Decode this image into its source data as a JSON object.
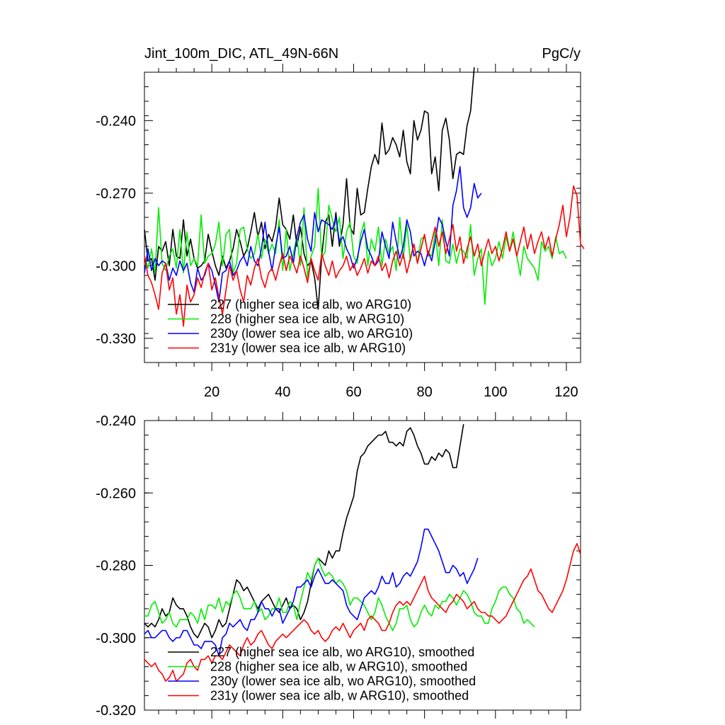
{
  "title_left": "Jint_100m_DIC, ATL_49N-66N",
  "title_right": "PgC/y",
  "chart_data": [
    {
      "type": "line",
      "title": "Jint_100m_DIC, ATL_49N-66N",
      "units": "PgC/y",
      "xlim": [
        1,
        124
      ],
      "ylim": [
        -0.34,
        -0.22
      ],
      "yticks": [
        -0.24,
        -0.27,
        -0.3,
        -0.33
      ],
      "ytick_labels": [
        "-0.240",
        "-0.270",
        "-0.300",
        "-0.330"
      ],
      "xticks": [
        20,
        40,
        60,
        80,
        100,
        120
      ],
      "xtick_labels": [
        "20",
        "40",
        "60",
        "80",
        "100",
        "120"
      ],
      "legend_position": "bottom-left",
      "series": [
        {
          "name": "227 (higher sea ice alb, wo ARG10)",
          "color": "#000000",
          "x_start": 1,
          "values": [
            -0.285,
            -0.298,
            -0.297,
            -0.306,
            -0.292,
            -0.294,
            -0.29,
            -0.3,
            -0.285,
            -0.296,
            -0.297,
            -0.281,
            -0.296,
            -0.289,
            -0.297,
            -0.301,
            -0.3,
            -0.298,
            -0.287,
            -0.294,
            -0.3,
            -0.304,
            -0.296,
            -0.301,
            -0.298,
            -0.293,
            -0.285,
            -0.29,
            -0.296,
            -0.293,
            -0.286,
            -0.278,
            -0.288,
            -0.282,
            -0.293,
            -0.287,
            -0.29,
            -0.284,
            -0.272,
            -0.283,
            -0.285,
            -0.289,
            -0.279,
            -0.292,
            -0.284,
            -0.295,
            -0.3,
            -0.298,
            -0.305,
            -0.318,
            -0.296,
            -0.282,
            -0.279,
            -0.292,
            -0.278,
            -0.292,
            -0.283,
            -0.264,
            -0.284,
            -0.287,
            -0.268,
            -0.279,
            -0.278,
            -0.268,
            -0.259,
            -0.254,
            -0.258,
            -0.241,
            -0.254,
            -0.252,
            -0.247,
            -0.25,
            -0.255,
            -0.244,
            -0.257,
            -0.262,
            -0.24,
            -0.248,
            -0.244,
            -0.236,
            -0.237,
            -0.262,
            -0.255,
            -0.269,
            -0.244,
            -0.239,
            -0.248,
            -0.264,
            -0.254,
            -0.253,
            -0.254,
            -0.242,
            -0.236,
            -0.218
          ]
        },
        {
          "name": "228 (higher sea ice alb, w ARG10)",
          "color": "#00ee00",
          "x_start": 1,
          "values": [
            -0.296,
            -0.301,
            -0.293,
            -0.303,
            -0.276,
            -0.299,
            -0.302,
            -0.296,
            -0.293,
            -0.301,
            -0.285,
            -0.303,
            -0.286,
            -0.3,
            -0.297,
            -0.3,
            -0.279,
            -0.299,
            -0.296,
            -0.295,
            -0.291,
            -0.282,
            -0.3,
            -0.287,
            -0.285,
            -0.303,
            -0.299,
            -0.285,
            -0.284,
            -0.293,
            -0.297,
            -0.295,
            -0.287,
            -0.297,
            -0.289,
            -0.295,
            -0.291,
            -0.295,
            -0.281,
            -0.302,
            -0.285,
            -0.302,
            -0.295,
            -0.288,
            -0.3,
            -0.276,
            -0.305,
            -0.296,
            -0.292,
            -0.268,
            -0.297,
            -0.294,
            -0.275,
            -0.281,
            -0.286,
            -0.28,
            -0.297,
            -0.286,
            -0.282,
            -0.296,
            -0.299,
            -0.287,
            -0.282,
            -0.3,
            -0.289,
            -0.294,
            -0.284,
            -0.3,
            -0.289,
            -0.295,
            -0.292,
            -0.302,
            -0.28,
            -0.297,
            -0.283,
            -0.298,
            -0.291,
            -0.299,
            -0.289,
            -0.288,
            -0.295,
            -0.296,
            -0.286,
            -0.3,
            -0.281,
            -0.298,
            -0.299,
            -0.291,
            -0.299,
            -0.293,
            -0.294,
            -0.297,
            -0.283,
            -0.304,
            -0.297,
            -0.293,
            -0.316,
            -0.294,
            -0.3,
            -0.297,
            -0.29,
            -0.297,
            -0.288,
            -0.294,
            -0.286,
            -0.296,
            -0.304,
            -0.292,
            -0.297,
            -0.299,
            -0.301,
            -0.306,
            -0.29,
            -0.294,
            -0.292,
            -0.297,
            -0.288,
            -0.295,
            -0.294,
            -0.297
          ]
        },
        {
          "name": "230y (lower sea ice alb, wo ARG10)",
          "color": "#0000ff",
          "x_start": 1,
          "values": [
            -0.303,
            -0.293,
            -0.302,
            -0.297,
            -0.3,
            -0.298,
            -0.299,
            -0.306,
            -0.301,
            -0.304,
            -0.298,
            -0.302,
            -0.299,
            -0.307,
            -0.311,
            -0.301,
            -0.306,
            -0.304,
            -0.299,
            -0.302,
            -0.308,
            -0.315,
            -0.303,
            -0.302,
            -0.298,
            -0.304,
            -0.302,
            -0.298,
            -0.296,
            -0.3,
            -0.292,
            -0.298,
            -0.3,
            -0.293,
            -0.282,
            -0.294,
            -0.302,
            -0.292,
            -0.284,
            -0.297,
            -0.296,
            -0.292,
            -0.299,
            -0.288,
            -0.282,
            -0.279,
            -0.289,
            -0.294,
            -0.278,
            -0.286,
            -0.281,
            -0.282,
            -0.283,
            -0.285,
            -0.28,
            -0.29,
            -0.288,
            -0.293,
            -0.296,
            -0.301,
            -0.297,
            -0.29,
            -0.285,
            -0.293,
            -0.296,
            -0.3,
            -0.298,
            -0.286,
            -0.292,
            -0.297,
            -0.282,
            -0.29,
            -0.297,
            -0.292,
            -0.281,
            -0.286,
            -0.296,
            -0.294,
            -0.295,
            -0.3,
            -0.294,
            -0.298,
            -0.29,
            -0.28,
            -0.283,
            -0.29,
            -0.296,
            -0.275,
            -0.269,
            -0.259,
            -0.276,
            -0.28,
            -0.276,
            -0.266,
            -0.272,
            -0.27
          ]
        },
        {
          "name": "231y (lower sea ice alb, w ARG10)",
          "color": "#ff0000",
          "x_start": 1,
          "values": [
            -0.296,
            -0.304,
            -0.307,
            -0.312,
            -0.318,
            -0.303,
            -0.299,
            -0.31,
            -0.305,
            -0.32,
            -0.312,
            -0.325,
            -0.308,
            -0.315,
            -0.312,
            -0.305,
            -0.309,
            -0.303,
            -0.299,
            -0.31,
            -0.305,
            -0.313,
            -0.32,
            -0.31,
            -0.3,
            -0.306,
            -0.302,
            -0.31,
            -0.315,
            -0.304,
            -0.308,
            -0.301,
            -0.297,
            -0.305,
            -0.309,
            -0.303,
            -0.301,
            -0.306,
            -0.3,
            -0.295,
            -0.302,
            -0.296,
            -0.299,
            -0.303,
            -0.296,
            -0.301,
            -0.307,
            -0.297,
            -0.302,
            -0.306,
            -0.295,
            -0.3,
            -0.304,
            -0.298,
            -0.305,
            -0.302,
            -0.3,
            -0.296,
            -0.302,
            -0.299,
            -0.304,
            -0.301,
            -0.297,
            -0.303,
            -0.298,
            -0.3,
            -0.296,
            -0.302,
            -0.299,
            -0.305,
            -0.298,
            -0.294,
            -0.3,
            -0.295,
            -0.303,
            -0.297,
            -0.291,
            -0.299,
            -0.293,
            -0.287,
            -0.296,
            -0.29,
            -0.284,
            -0.292,
            -0.286,
            -0.295,
            -0.289,
            -0.283,
            -0.294,
            -0.288,
            -0.299,
            -0.293,
            -0.288,
            -0.296,
            -0.291,
            -0.3,
            -0.294,
            -0.289,
            -0.295,
            -0.292,
            -0.298,
            -0.293,
            -0.286,
            -0.294,
            -0.289,
            -0.296,
            -0.29,
            -0.284,
            -0.293,
            -0.287,
            -0.295,
            -0.29,
            -0.286,
            -0.293,
            -0.288,
            -0.296,
            -0.289,
            -0.283,
            -0.275,
            -0.288,
            -0.28,
            -0.267,
            -0.271,
            -0.291,
            -0.293
          ]
        }
      ]
    },
    {
      "type": "line",
      "title": "",
      "xlim": [
        1,
        124
      ],
      "ylim": [
        -0.32,
        -0.24
      ],
      "yticks": [
        -0.24,
        -0.26,
        -0.28,
        -0.3,
        -0.32
      ],
      "ytick_labels": [
        "-0.240",
        "-0.260",
        "-0.280",
        "-0.300",
        "-0.320"
      ],
      "xticks": [
        20,
        40,
        60,
        80,
        100,
        120
      ],
      "legend_position": "bottom-left",
      "series": [
        {
          "name": "227 (higher sea ice alb, wo ARG10), smoothed",
          "color": "#000000",
          "x_start": 1,
          "values": [
            -0.296,
            -0.297,
            -0.296,
            -0.297,
            -0.295,
            -0.292,
            -0.294,
            -0.293,
            -0.289,
            -0.291,
            -0.292,
            -0.292,
            -0.294,
            -0.297,
            -0.299,
            -0.3,
            -0.298,
            -0.296,
            -0.297,
            -0.3,
            -0.298,
            -0.295,
            -0.297,
            -0.296,
            -0.292,
            -0.288,
            -0.284,
            -0.285,
            -0.287,
            -0.286,
            -0.288,
            -0.29,
            -0.292,
            -0.29,
            -0.289,
            -0.288,
            -0.29,
            -0.292,
            -0.293,
            -0.291,
            -0.289,
            -0.292,
            -0.291,
            -0.292,
            -0.295,
            -0.293,
            -0.29,
            -0.285,
            -0.28,
            -0.278,
            -0.279,
            -0.28,
            -0.276,
            -0.278,
            -0.276,
            -0.276,
            -0.271,
            -0.267,
            -0.264,
            -0.261,
            -0.254,
            -0.25,
            -0.249,
            -0.247,
            -0.246,
            -0.245,
            -0.244,
            -0.244,
            -0.243,
            -0.246,
            -0.246,
            -0.247,
            -0.246,
            -0.247,
            -0.243,
            -0.242,
            -0.244,
            -0.247,
            -0.249,
            -0.252,
            -0.252,
            -0.25,
            -0.251,
            -0.249,
            -0.25,
            -0.248,
            -0.249,
            -0.253,
            -0.253,
            -0.247,
            -0.241
          ]
        },
        {
          "name": "228 (higher sea ice alb, w ARG10), smoothed",
          "color": "#00ee00",
          "x_start": 1,
          "values": [
            -0.294,
            -0.294,
            -0.291,
            -0.29,
            -0.293,
            -0.296,
            -0.295,
            -0.293,
            -0.296,
            -0.297,
            -0.295,
            -0.295,
            -0.295,
            -0.293,
            -0.294,
            -0.296,
            -0.292,
            -0.295,
            -0.291,
            -0.291,
            -0.292,
            -0.289,
            -0.293,
            -0.29,
            -0.291,
            -0.288,
            -0.287,
            -0.289,
            -0.292,
            -0.292,
            -0.292,
            -0.29,
            -0.293,
            -0.292,
            -0.295,
            -0.294,
            -0.292,
            -0.292,
            -0.289,
            -0.293,
            -0.293,
            -0.29,
            -0.291,
            -0.295,
            -0.29,
            -0.286,
            -0.282,
            -0.284,
            -0.28,
            -0.278,
            -0.281,
            -0.283,
            -0.282,
            -0.283,
            -0.285,
            -0.284,
            -0.285,
            -0.287,
            -0.291,
            -0.289,
            -0.289,
            -0.29,
            -0.291,
            -0.293,
            -0.295,
            -0.293,
            -0.289,
            -0.291,
            -0.294,
            -0.296,
            -0.298,
            -0.296,
            -0.292,
            -0.292,
            -0.291,
            -0.295,
            -0.297,
            -0.296,
            -0.293,
            -0.291,
            -0.293,
            -0.294,
            -0.291,
            -0.292,
            -0.29,
            -0.29,
            -0.288,
            -0.289,
            -0.291,
            -0.289,
            -0.287,
            -0.288,
            -0.29,
            -0.293,
            -0.294,
            -0.294,
            -0.296,
            -0.296,
            -0.292,
            -0.29,
            -0.287,
            -0.286,
            -0.286,
            -0.288,
            -0.289,
            -0.292,
            -0.293,
            -0.296,
            -0.295,
            -0.296,
            -0.297
          ]
        },
        {
          "name": "230y (lower sea ice alb, wo ARG10), smoothed",
          "color": "#0000ff",
          "x_start": 1,
          "values": [
            -0.299,
            -0.298,
            -0.3,
            -0.3,
            -0.299,
            -0.298,
            -0.298,
            -0.3,
            -0.301,
            -0.3,
            -0.3,
            -0.298,
            -0.298,
            -0.3,
            -0.302,
            -0.302,
            -0.303,
            -0.301,
            -0.301,
            -0.301,
            -0.302,
            -0.305,
            -0.3,
            -0.299,
            -0.296,
            -0.297,
            -0.296,
            -0.295,
            -0.297,
            -0.298,
            -0.295,
            -0.295,
            -0.293,
            -0.29,
            -0.292,
            -0.292,
            -0.294,
            -0.292,
            -0.292,
            -0.296,
            -0.294,
            -0.292,
            -0.29,
            -0.286,
            -0.286,
            -0.285,
            -0.284,
            -0.286,
            -0.283,
            -0.281,
            -0.283,
            -0.285,
            -0.285,
            -0.284,
            -0.285,
            -0.286,
            -0.287,
            -0.291,
            -0.293,
            -0.294,
            -0.295,
            -0.292,
            -0.289,
            -0.288,
            -0.287,
            -0.288,
            -0.286,
            -0.283,
            -0.285,
            -0.285,
            -0.282,
            -0.286,
            -0.285,
            -0.283,
            -0.282,
            -0.283,
            -0.281,
            -0.279,
            -0.275,
            -0.27,
            -0.27,
            -0.272,
            -0.274,
            -0.276,
            -0.279,
            -0.282,
            -0.282,
            -0.28,
            -0.281,
            -0.283,
            -0.282,
            -0.285,
            -0.283,
            -0.281,
            -0.278
          ]
        },
        {
          "name": "231y (lower sea ice alb, w ARG10), smoothed",
          "color": "#ff0000",
          "x_start": 1,
          "values": [
            -0.306,
            -0.307,
            -0.308,
            -0.307,
            -0.309,
            -0.31,
            -0.312,
            -0.311,
            -0.309,
            -0.312,
            -0.311,
            -0.31,
            -0.307,
            -0.306,
            -0.308,
            -0.309,
            -0.306,
            -0.306,
            -0.305,
            -0.307,
            -0.305,
            -0.305,
            -0.306,
            -0.304,
            -0.302,
            -0.303,
            -0.304,
            -0.305,
            -0.302,
            -0.3,
            -0.302,
            -0.301,
            -0.299,
            -0.298,
            -0.3,
            -0.302,
            -0.303,
            -0.301,
            -0.3,
            -0.299,
            -0.3,
            -0.299,
            -0.298,
            -0.297,
            -0.296,
            -0.295,
            -0.296,
            -0.298,
            -0.299,
            -0.298,
            -0.3,
            -0.301,
            -0.3,
            -0.298,
            -0.297,
            -0.298,
            -0.296,
            -0.298,
            -0.3,
            -0.298,
            -0.297,
            -0.296,
            -0.298,
            -0.295,
            -0.294,
            -0.295,
            -0.296,
            -0.298,
            -0.298,
            -0.296,
            -0.293,
            -0.291,
            -0.29,
            -0.291,
            -0.29,
            -0.291,
            -0.289,
            -0.287,
            -0.285,
            -0.283,
            -0.287,
            -0.289,
            -0.29,
            -0.291,
            -0.292,
            -0.293,
            -0.291,
            -0.29,
            -0.288,
            -0.289,
            -0.29,
            -0.292,
            -0.291,
            -0.29,
            -0.292,
            -0.293,
            -0.293,
            -0.294,
            -0.294,
            -0.295,
            -0.296,
            -0.295,
            -0.294,
            -0.292,
            -0.29,
            -0.288,
            -0.286,
            -0.284,
            -0.283,
            -0.281,
            -0.284,
            -0.287,
            -0.288,
            -0.29,
            -0.292,
            -0.293,
            -0.291,
            -0.289,
            -0.287,
            -0.284,
            -0.28,
            -0.276,
            -0.274,
            -0.277
          ]
        }
      ]
    }
  ]
}
